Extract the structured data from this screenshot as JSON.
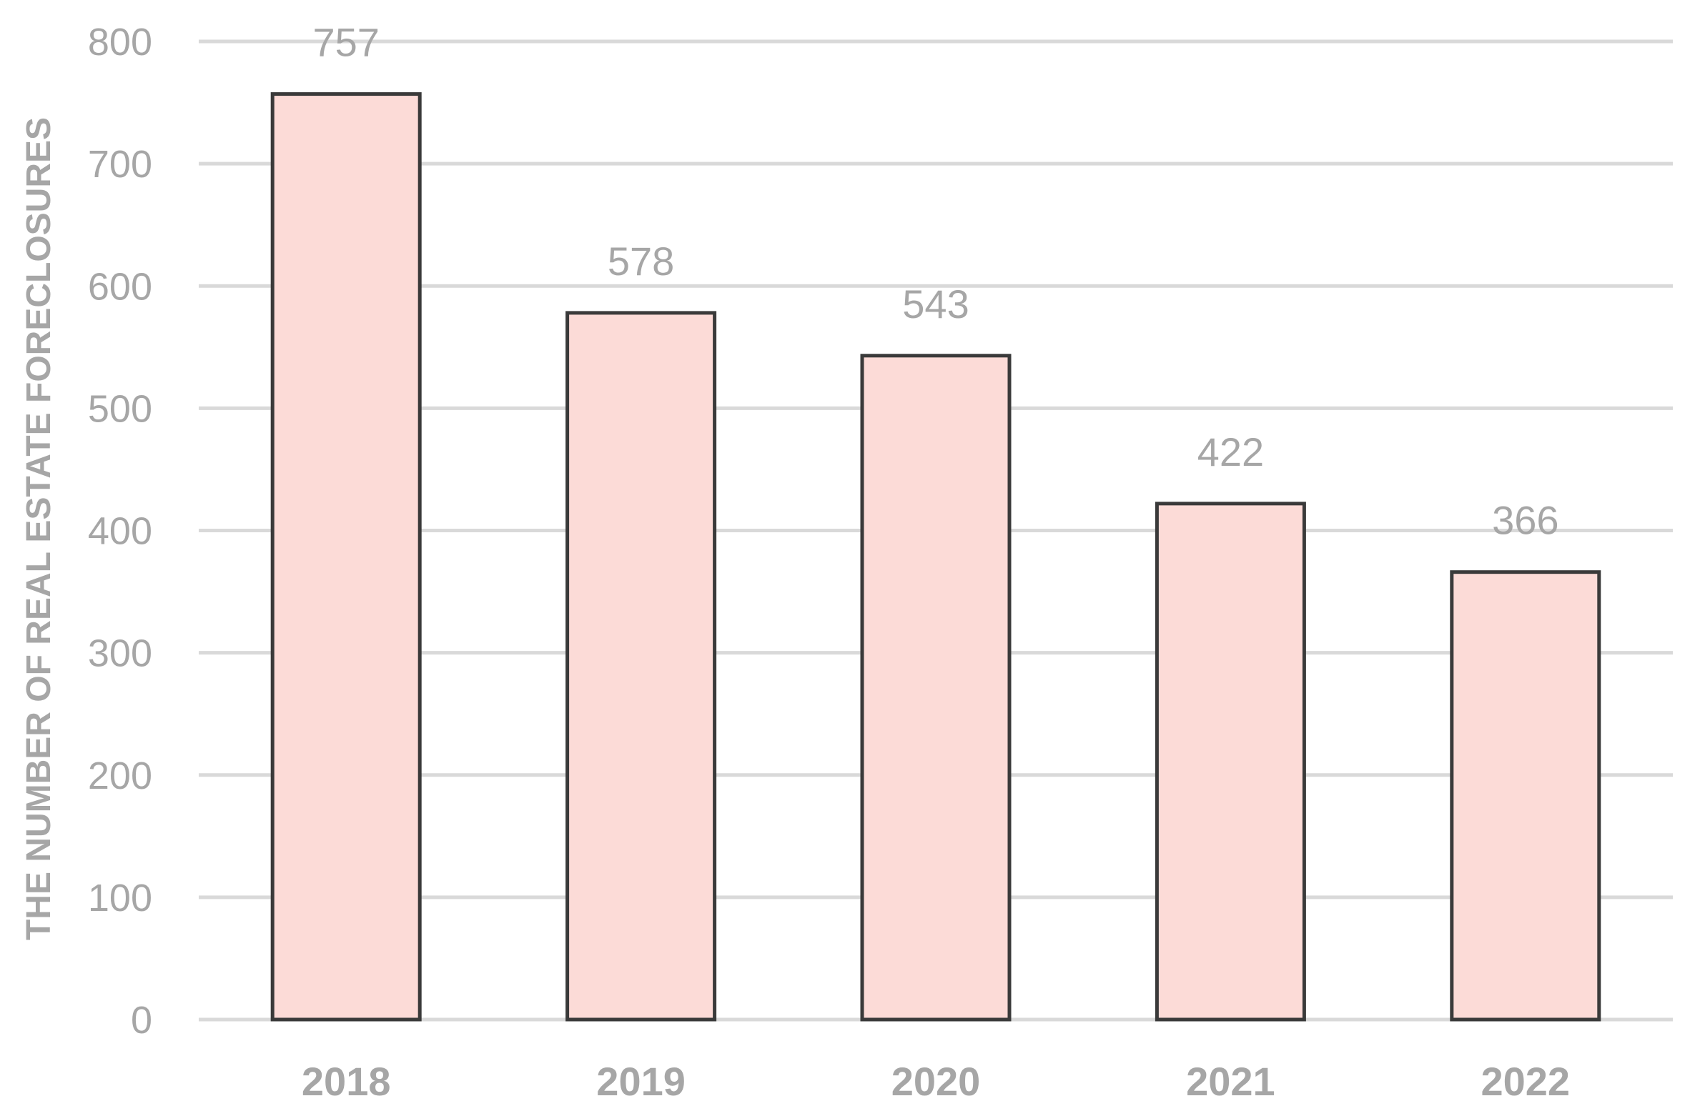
{
  "chart_data": {
    "type": "bar",
    "title": "",
    "xlabel": "",
    "ylabel": "THE NUMBER OF REAL ESTATE FORECLOSURES",
    "categories": [
      "2018",
      "2019",
      "2020",
      "2021",
      "2022"
    ],
    "values": [
      757,
      578,
      543,
      422,
      366
    ],
    "data_labels": [
      "757",
      "578",
      "543",
      "422",
      "366"
    ],
    "ylim": [
      0,
      800
    ],
    "yticks": [
      0,
      100,
      200,
      300,
      400,
      500,
      600,
      700,
      800
    ],
    "grid": true,
    "legend": "none",
    "colors": {
      "bar_fill": "#fcdbd7",
      "bar_stroke": "#3a3a3a",
      "grid": "#d9d9d9",
      "text": "#a6a6a6"
    }
  }
}
